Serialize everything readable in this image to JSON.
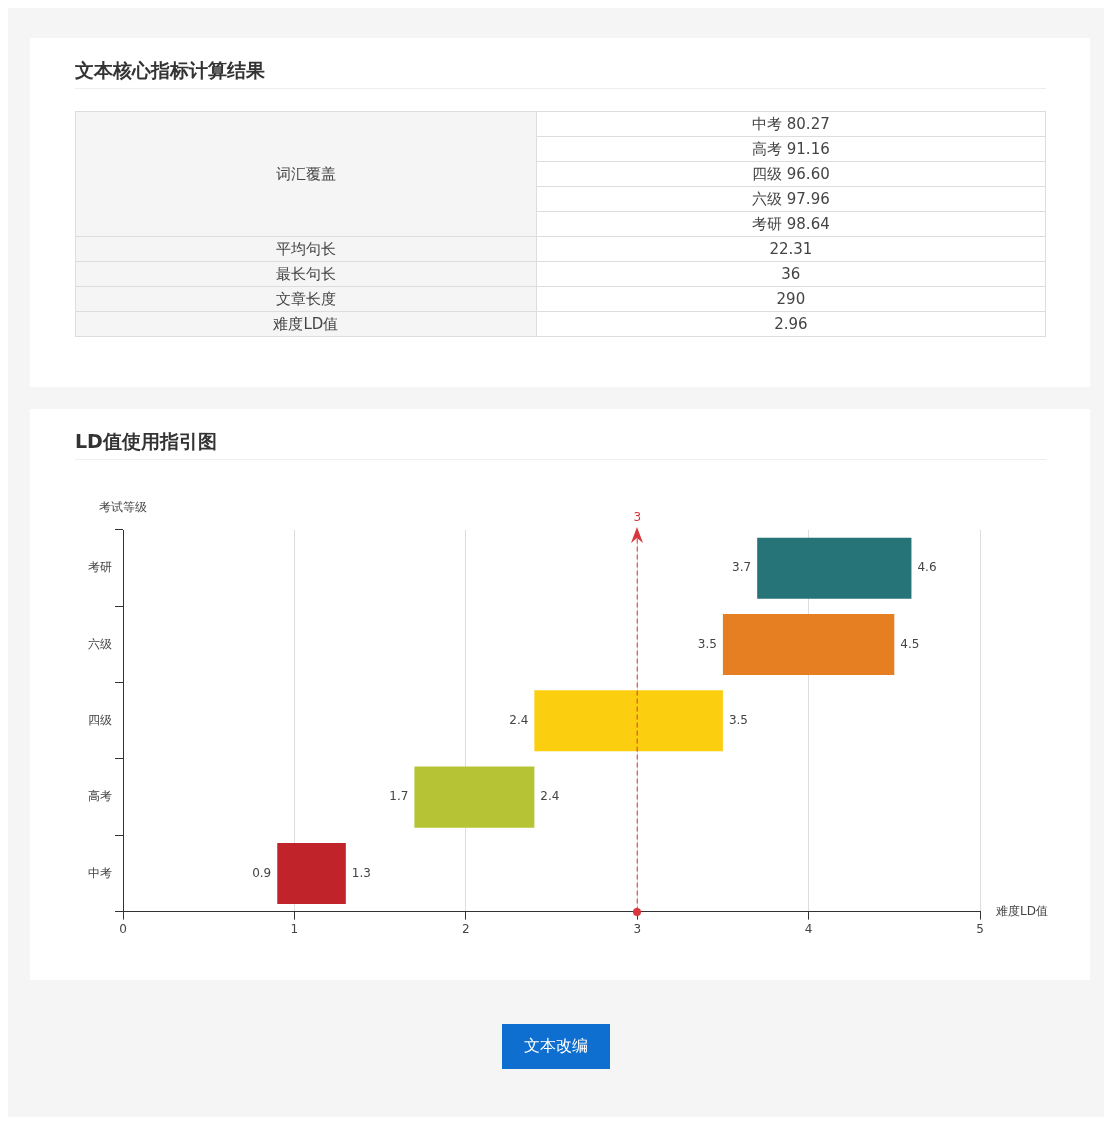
{
  "chart_data": [
    {
      "type": "other",
      "title": "文本核心指标计算结果",
      "annotations": [
        "词汇覆盖",
        "中考 80.27",
        "高考 91.16",
        "四级 96.60",
        "六级 97.96",
        "考研 98.64",
        "平均句长",
        "22.31",
        "最长句长",
        "36",
        "文章长度",
        "290",
        "难度LD值",
        "2.96"
      ]
    },
    {
      "type": "bar",
      "title": "LD值使用指引图",
      "orientation": "horizontal",
      "categories": [
        "考研",
        "六级",
        "四级",
        "高考",
        "中考"
      ],
      "base": [
        3.7,
        3.5,
        2.4,
        1.7,
        0.9
      ],
      "values": [
        0.9,
        1.0,
        1.1,
        0.7,
        0.4
      ],
      "colors": [
        "#267378",
        "#e67e22",
        "#fcce10",
        "#b5c334",
        "#c1232b"
      ],
      "value_labels": [
        "4.6",
        "4.5",
        "3.5",
        "2.4",
        "1.3"
      ],
      "annotations": [
        {
          "text": "3.7",
          "x": 3.7,
          "y": "考研"
        },
        {
          "text": "3.5",
          "x": 3.5,
          "y": "六级"
        },
        {
          "text": "2.4",
          "x": 2.4,
          "y": "四级"
        },
        {
          "text": "1.7",
          "x": 1.7,
          "y": "高考"
        },
        {
          "text": "0.9",
          "x": 0.9,
          "y": "中考"
        },
        "文本改编"
      ],
      "xlim": [
        0,
        5
      ],
      "xticks": [
        0,
        1,
        2,
        3,
        4,
        5
      ],
      "xlabel": "难度LD值",
      "ylabel": "考试等级",
      "grid": "x",
      "ref_lines": [
        {
          "axis": "x",
          "value": 3,
          "label": "3",
          "color": "#d9363e",
          "line_style": "dashed"
        }
      ]
    }
  ]
}
